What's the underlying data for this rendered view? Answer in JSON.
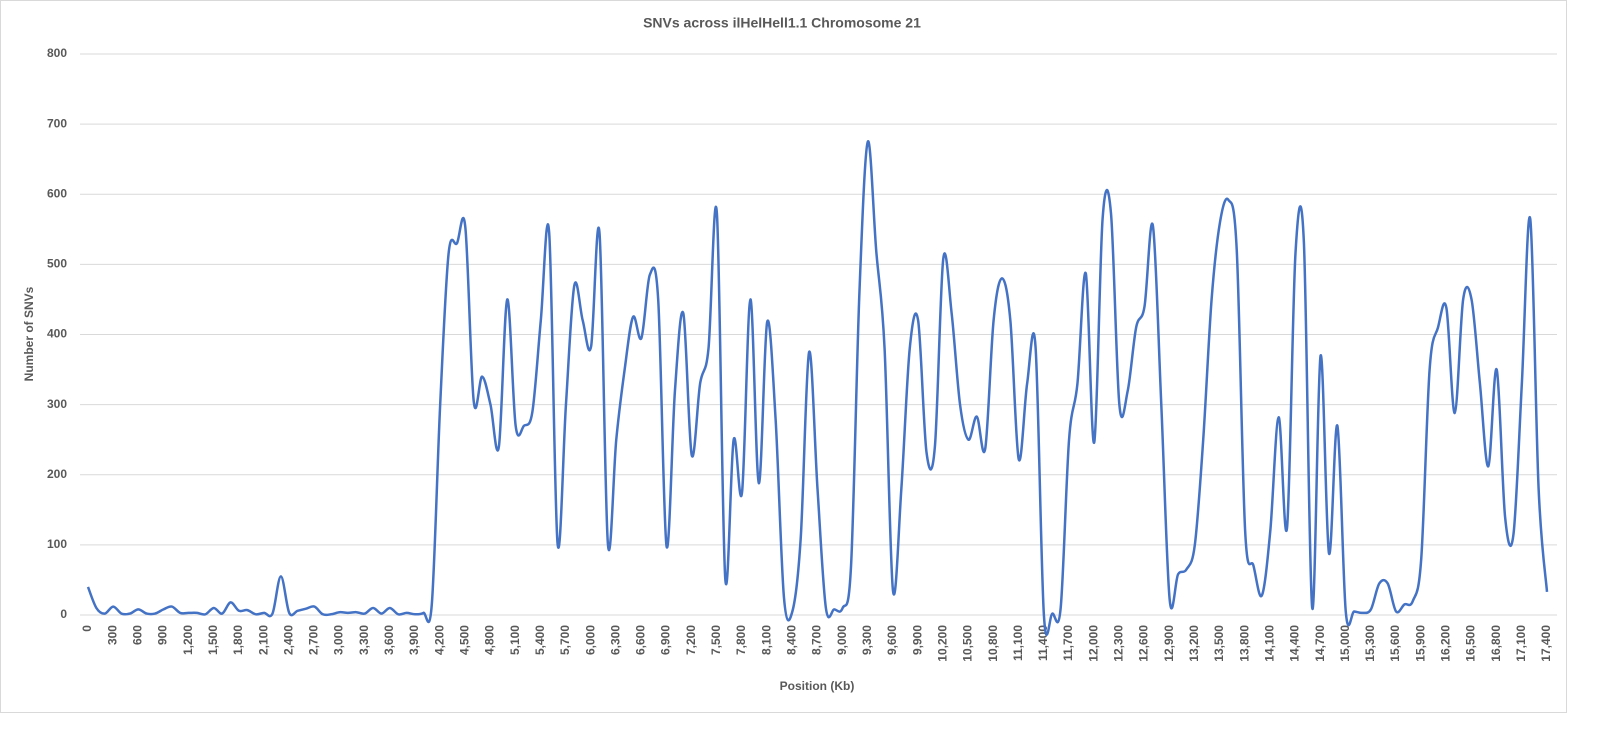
{
  "chart_data": {
    "type": "line",
    "title": "SNVs across ilHelHell1.1 Chromosome 21",
    "x_label": "Position (Kb)",
    "y_label": "Number of SNVs",
    "color": "#4472c4",
    "grid": true,
    "ylim": [
      0,
      800
    ],
    "yticks": [
      0,
      100,
      200,
      300,
      400,
      500,
      600,
      700,
      800
    ],
    "categories": [
      "0",
      null,
      null,
      "300",
      null,
      null,
      "600",
      null,
      null,
      "900",
      null,
      null,
      "1,200",
      null,
      null,
      "1,500",
      null,
      null,
      "1,800",
      null,
      null,
      "2,100",
      null,
      null,
      "2,400",
      null,
      null,
      "2,700",
      null,
      null,
      "3,000",
      null,
      null,
      "3,300",
      null,
      null,
      "3,600",
      null,
      null,
      "3,900",
      null,
      null,
      "4,200",
      null,
      null,
      "4,500",
      null,
      null,
      "4,800",
      null,
      null,
      "5,100",
      null,
      null,
      "5,400",
      null,
      null,
      "5,700",
      null,
      null,
      "6,000",
      null,
      null,
      "6,300",
      null,
      null,
      "6,600",
      null,
      null,
      "6,900",
      null,
      null,
      "7,200",
      null,
      null,
      "7,500",
      null,
      null,
      "7,800",
      null,
      null,
      "8,100",
      null,
      null,
      "8,400",
      null,
      null,
      "8,700",
      null,
      null,
      "9,000",
      null,
      null,
      "9,300",
      null,
      null,
      "9,600",
      null,
      null,
      "9,900",
      null,
      null,
      "10,200",
      null,
      null,
      "10,500",
      null,
      null,
      "10,800",
      null,
      null,
      "11,100",
      null,
      null,
      "11,400",
      null,
      null,
      "11,700",
      null,
      null,
      "12,000",
      null,
      null,
      "12,300",
      null,
      null,
      "12,600",
      null,
      null,
      "12,900",
      null,
      null,
      "13,200",
      null,
      null,
      "13,500",
      null,
      null,
      "13,800",
      null,
      null,
      "14,100",
      null,
      null,
      "14,400",
      null,
      null,
      "14,700",
      null,
      null,
      "15,000",
      null,
      null,
      "15,300",
      null,
      null,
      "15,600",
      null,
      null,
      "15,900",
      null,
      null,
      "16,200",
      null,
      null,
      "16,500",
      null,
      null,
      "16,800",
      null,
      null,
      "17,100",
      null,
      null,
      "17,400"
    ],
    "values": [
      40,
      10,
      2,
      12,
      2,
      2,
      8,
      2,
      2,
      8,
      12,
      3,
      3,
      3,
      1,
      10,
      2,
      18,
      6,
      7,
      1,
      3,
      2,
      55,
      3,
      6,
      9,
      12,
      1,
      1,
      4,
      3,
      4,
      2,
      10,
      2,
      10,
      1,
      3,
      1,
      3,
      15,
      300,
      515,
      530,
      553,
      305,
      340,
      300,
      240,
      450,
      270,
      270,
      290,
      420,
      545,
      102,
      300,
      470,
      420,
      383,
      545,
      102,
      250,
      350,
      425,
      395,
      485,
      450,
      98,
      320,
      430,
      228,
      330,
      380,
      573,
      52,
      250,
      175,
      450,
      188,
      418,
      280,
      25,
      5,
      110,
      375,
      180,
      10,
      8,
      10,
      70,
      460,
      675,
      520,
      380,
      35,
      180,
      380,
      420,
      232,
      240,
      508,
      430,
      300,
      250,
      283,
      237,
      420,
      480,
      420,
      222,
      330,
      383,
      0,
      2,
      10,
      250,
      330,
      487,
      246,
      565,
      573,
      300,
      320,
      410,
      440,
      555,
      300,
      22,
      58,
      65,
      100,
      250,
      450,
      560,
      592,
      520,
      120,
      70,
      28,
      120,
      282,
      125,
      515,
      533,
      10,
      370,
      88,
      270,
      5,
      5,
      3,
      8,
      45,
      45,
      5,
      15,
      20,
      80,
      350,
      410,
      438,
      288,
      450,
      450,
      330,
      212,
      350,
      140,
      115,
      330,
      565,
      180,
      33
    ]
  }
}
